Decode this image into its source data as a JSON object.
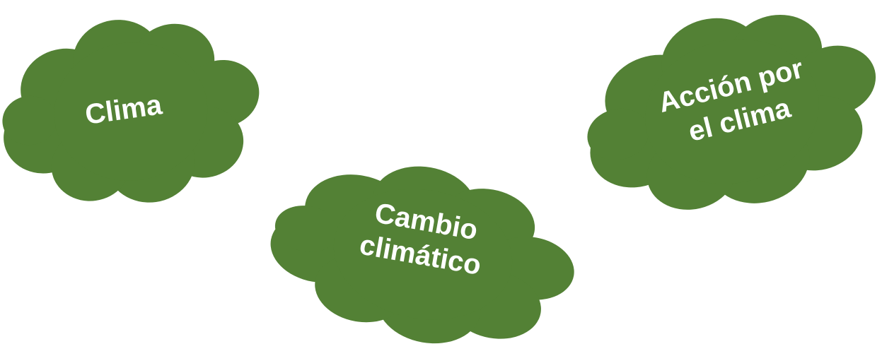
{
  "nodes": [
    {
      "lines": [
        "Clima"
      ]
    },
    {
      "lines": [
        "Cambio",
        "climático"
      ]
    },
    {
      "lines": [
        "Acción por",
        "el clima"
      ]
    }
  ]
}
